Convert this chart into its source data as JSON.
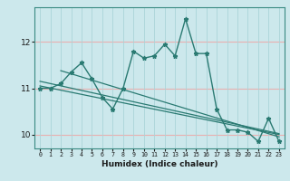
{
  "xlabel": "Humidex (Indice chaleur)",
  "ylabel": "",
  "bg_color": "#cce8ec",
  "grid_color": "#aad4d8",
  "line_color": "#2a7a72",
  "red_grid_color": "#e8b0b0",
  "xlim": [
    -0.5,
    23.5
  ],
  "ylim": [
    9.7,
    12.75
  ],
  "yticks": [
    10,
    11,
    12
  ],
  "xticks": [
    0,
    1,
    2,
    3,
    4,
    5,
    6,
    7,
    8,
    9,
    10,
    11,
    12,
    13,
    14,
    15,
    16,
    17,
    18,
    19,
    20,
    21,
    22,
    23
  ],
  "series1_x": [
    0,
    1,
    2,
    3,
    4,
    5,
    6,
    7,
    8,
    9,
    10,
    11,
    12,
    13,
    14,
    15,
    16,
    17,
    18,
    19,
    20,
    21,
    22,
    23
  ],
  "series1_y": [
    11.0,
    11.0,
    11.1,
    11.35,
    11.55,
    11.2,
    10.8,
    10.55,
    11.0,
    11.8,
    11.65,
    11.7,
    11.95,
    11.7,
    12.5,
    11.75,
    11.75,
    10.55,
    10.1,
    10.1,
    10.05,
    9.85,
    10.35,
    9.85
  ],
  "trend1_x": [
    0,
    23
  ],
  "trend1_y": [
    11.05,
    10.0
  ],
  "trend2_x": [
    0,
    23
  ],
  "trend2_y": [
    11.15,
    10.02
  ],
  "trend3_x": [
    2,
    23
  ],
  "trend3_y": [
    11.38,
    9.95
  ]
}
